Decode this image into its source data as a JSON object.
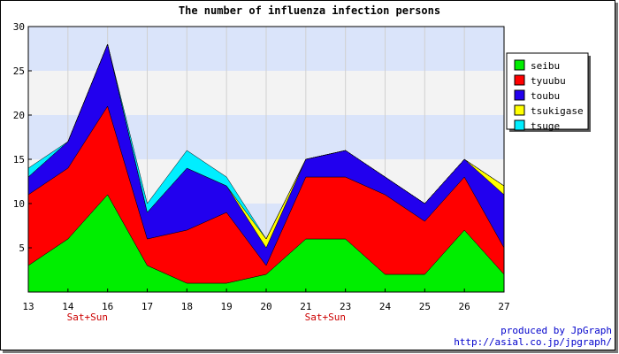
{
  "chart_data": {
    "type": "area",
    "stacked": true,
    "title": "The number of influenza infection persons",
    "xlabel": "",
    "ylabel": "",
    "categories": [
      "13",
      "14",
      "16",
      "17",
      "18",
      "19",
      "20",
      "21",
      "23",
      "24",
      "25",
      "26",
      "27"
    ],
    "annotations": [
      {
        "category": "14",
        "text": "Sat+Sun"
      },
      {
        "category": "21",
        "text": "Sat+Sun"
      }
    ],
    "ylim": [
      0,
      30
    ],
    "yticks": [
      5,
      10,
      15,
      20,
      25,
      30
    ],
    "grid": true,
    "background_bands": [
      "#f3f3f3",
      "#dae4fa"
    ],
    "legend_position": "right",
    "series": [
      {
        "name": "seibu",
        "color": "#00ee00",
        "values": [
          3,
          6,
          11,
          3,
          1,
          1,
          2,
          6,
          6,
          2,
          2,
          7,
          2
        ]
      },
      {
        "name": "tyuubu",
        "color": "#ff0000",
        "values": [
          8,
          8,
          10,
          3,
          6,
          8,
          1,
          7,
          7,
          9,
          6,
          6,
          3
        ]
      },
      {
        "name": "toubu",
        "color": "#2200ee",
        "values": [
          2,
          3,
          7,
          3,
          7,
          3,
          2,
          2,
          3,
          2,
          2,
          2,
          6
        ]
      },
      {
        "name": "tsukigase",
        "color": "#ffff00",
        "values": [
          0,
          0,
          0,
          0,
          0,
          0,
          1,
          0,
          0,
          0,
          0,
          0,
          1
        ]
      },
      {
        "name": "tsuge",
        "color": "#00eeff",
        "values": [
          1,
          0,
          0,
          1,
          2,
          1,
          0,
          0,
          0,
          0,
          0,
          0,
          0
        ]
      }
    ]
  },
  "credit": {
    "line1": "produced by JpGraph",
    "line2": "http://asial.co.jp/jpgraph/"
  }
}
